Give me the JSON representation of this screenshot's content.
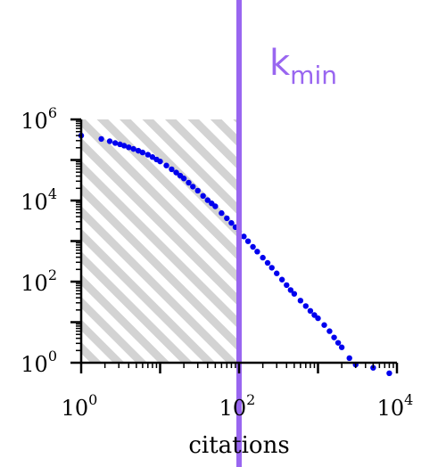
{
  "chart_data": {
    "type": "scatter",
    "xscale": "log",
    "yscale": "log",
    "xlim": [
      1,
      10000
    ],
    "ylim": [
      1,
      1000000
    ],
    "xlabel": "citations",
    "ylabel": "",
    "grid": false,
    "x_ticks": [
      {
        "base": "10",
        "exp": "0"
      },
      {
        "base": "10",
        "exp": "2"
      },
      {
        "base": "10",
        "exp": "4"
      }
    ],
    "y_ticks": [
      {
        "base": "10",
        "exp": "0"
      },
      {
        "base": "10",
        "exp": "2"
      },
      {
        "base": "10",
        "exp": "4"
      },
      {
        "base": "10",
        "exp": "6"
      }
    ],
    "threshold": {
      "x": 100,
      "label": "k",
      "label_sub": "min",
      "color": "#9966f0"
    },
    "shaded_region": {
      "x_from": 1,
      "x_to": 100,
      "y_from": 1,
      "y_to": 1000000,
      "pattern": "diagonal-hatch",
      "color": "#d3d3d3"
    },
    "series": [
      {
        "color": "#0000ee",
        "x": [
          1,
          1.8,
          2.3,
          2.7,
          3.1,
          3.5,
          4,
          4.6,
          5.3,
          6,
          7,
          8,
          9,
          10,
          12,
          14,
          16,
          18,
          20,
          23,
          26,
          30,
          35,
          40,
          45,
          50,
          60,
          70,
          80,
          90,
          100,
          115,
          130,
          150,
          170,
          200,
          230,
          260,
          300,
          350,
          400,
          450,
          500,
          600,
          700,
          800,
          900,
          1000,
          1200,
          1400,
          1600,
          1800,
          2000,
          2500,
          3000,
          5000,
          8000
        ],
        "y": [
          400000,
          330000,
          290000,
          262000,
          243000,
          225000,
          205000,
          187000,
          169000,
          153000,
          135000,
          118000,
          103000,
          92000,
          73000,
          59000,
          49000,
          41000,
          35000,
          27500,
          22000,
          17500,
          13000,
          10200,
          8500,
          7200,
          4900,
          3650,
          2800,
          2200,
          1760,
          1300,
          990,
          720,
          550,
          390,
          290,
          220,
          160,
          112,
          82,
          62,
          50,
          34,
          25,
          19,
          15,
          12.5,
          8.5,
          6,
          4.2,
          3.1,
          2.4,
          1.3,
          0.9,
          0.75,
          0.55
        ]
      }
    ]
  }
}
